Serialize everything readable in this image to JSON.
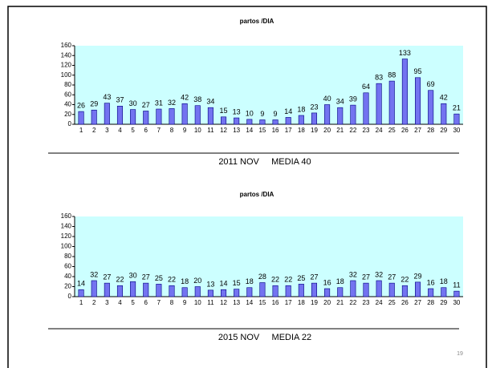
{
  "chart_data": [
    {
      "type": "bar",
      "title": "partos /DIA",
      "caption": "2011 NOV     MEDIA 40",
      "categories": [
        "1",
        "2",
        "3",
        "4",
        "5",
        "6",
        "7",
        "8",
        "9",
        "10",
        "11",
        "12",
        "13",
        "14",
        "15",
        "16",
        "17",
        "18",
        "19",
        "20",
        "21",
        "22",
        "23",
        "24",
        "25",
        "26",
        "27",
        "28",
        "29",
        "30"
      ],
      "values": [
        26,
        29,
        43,
        37,
        30,
        27,
        31,
        32,
        42,
        38,
        34,
        15,
        13,
        10,
        9,
        9,
        14,
        18,
        23,
        40,
        34,
        39,
        64,
        83,
        88,
        133,
        95,
        69,
        42,
        21
      ],
      "color": "#7373f0",
      "ylim": [
        0,
        160
      ],
      "yticks": [
        0,
        20,
        40,
        60,
        80,
        100,
        120,
        140,
        160
      ],
      "grid": false
    },
    {
      "type": "bar",
      "title": "partos /DIA",
      "caption": "2015 NOV     MEDIA 22",
      "categories": [
        "1",
        "2",
        "3",
        "4",
        "5",
        "6",
        "7",
        "8",
        "9",
        "10",
        "11",
        "12",
        "13",
        "14",
        "15",
        "16",
        "17",
        "18",
        "19",
        "20",
        "21",
        "22",
        "23",
        "24",
        "25",
        "26",
        "27",
        "28",
        "29",
        "30"
      ],
      "values": [
        14,
        32,
        27,
        22,
        30,
        27,
        25,
        22,
        18,
        20,
        13,
        14,
        15,
        18,
        28,
        22,
        22,
        25,
        27,
        16,
        18,
        32,
        27,
        32,
        27,
        22,
        29,
        16,
        18,
        11
      ],
      "color": "#7373f0",
      "ylim": [
        0,
        160
      ],
      "yticks": [
        0,
        20,
        40,
        60,
        80,
        100,
        120,
        140,
        160
      ],
      "grid": false
    }
  ],
  "page_number": "19"
}
